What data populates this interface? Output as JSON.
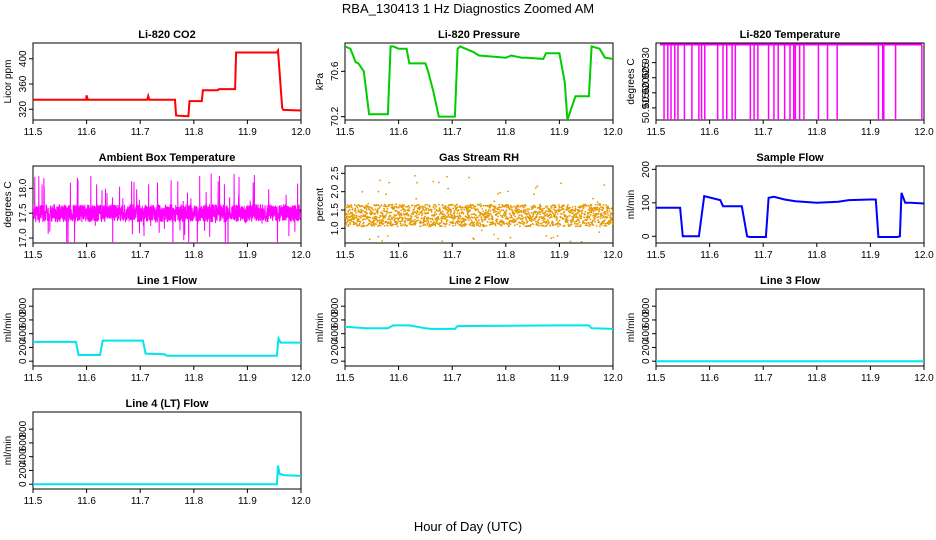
{
  "title": "RBA_130413  1 Hz Diagnostics Zoomed AM",
  "xlabel": "Hour of Day (UTC)",
  "chart_data": [
    {
      "type": "line",
      "title": "Li-820 CO2",
      "ylabel": "Licor ppm",
      "color": "#ff0000",
      "xlim": [
        11.5,
        12.0
      ],
      "ylim": [
        303,
        425
      ],
      "xticks": [
        "11.5",
        "11.6",
        "11.7",
        "11.8",
        "11.9",
        "12.0"
      ],
      "yticks": [
        320,
        360,
        400
      ],
      "series": [
        {
          "x": [
            11.5,
            11.599,
            11.6,
            11.602,
            11.713,
            11.715,
            11.717,
            11.765,
            11.767,
            11.79,
            11.792,
            11.815,
            11.817,
            11.845,
            11.847,
            11.877,
            11.879,
            11.955,
            11.957,
            11.965,
            11.967,
            12.0
          ],
          "y": [
            335,
            335,
            342,
            335,
            335,
            341,
            335,
            335,
            310,
            309,
            333,
            333,
            350,
            350,
            352,
            352,
            410,
            410,
            413,
            322,
            319,
            318
          ]
        }
      ]
    },
    {
      "type": "line",
      "title": "Li-820 Pressure",
      "ylabel": "kPa",
      "color": "#00cc00",
      "xlim": [
        11.5,
        12.0
      ],
      "ylim": [
        70.17,
        70.85
      ],
      "xticks": [
        "11.5",
        "11.6",
        "11.7",
        "11.8",
        "11.9",
        "12.0"
      ],
      "yticks": [
        "70.2",
        "70.6"
      ],
      "series": [
        {
          "x": [
            11.5,
            11.51,
            11.52,
            11.525,
            11.535,
            11.545,
            11.58,
            11.585,
            11.59,
            11.6,
            11.615,
            11.62,
            11.65,
            11.655,
            11.665,
            11.675,
            11.705,
            11.71,
            11.715,
            11.74,
            11.75,
            11.8,
            11.81,
            11.83,
            11.84,
            11.87,
            11.875,
            11.9,
            11.91,
            11.915,
            11.93,
            11.955,
            11.96,
            11.975,
            11.985,
            12.0
          ],
          "y": [
            70.82,
            70.8,
            70.68,
            70.67,
            70.6,
            70.22,
            70.22,
            70.82,
            70.82,
            70.8,
            70.8,
            70.67,
            70.67,
            70.6,
            70.42,
            70.2,
            70.2,
            70.8,
            70.82,
            70.77,
            70.74,
            70.72,
            70.74,
            70.72,
            70.72,
            70.71,
            70.76,
            70.76,
            70.5,
            70.17,
            70.38,
            70.38,
            70.82,
            70.8,
            70.72,
            70.71
          ]
        }
      ]
    },
    {
      "type": "line",
      "title": "Li-820 Temperature",
      "ylabel": "degrees C",
      "color": "#ff00ff",
      "xlim": [
        11.5,
        12.0
      ],
      "ylim": [
        50.911,
        50.9365
      ],
      "xticks": [
        "11.5",
        "11.6",
        "11.7",
        "11.8",
        "11.9",
        "12.0"
      ],
      "yticks": [
        "50.915",
        "50.920",
        "50.925",
        "50.930"
      ],
      "baseline": 50.936,
      "dip_to": 50.911,
      "dips_x": [
        11.515,
        11.522,
        11.528,
        11.535,
        11.541,
        11.553,
        11.567,
        11.58,
        11.585,
        11.591,
        11.615,
        11.625,
        11.632,
        11.642,
        11.648,
        11.676,
        11.683,
        11.69,
        11.71,
        11.72,
        11.728,
        11.74,
        11.75,
        11.757,
        11.76,
        11.768,
        11.776,
        11.803,
        11.82,
        11.838,
        11.915,
        11.923,
        11.925,
        11.947,
        11.996
      ]
    },
    {
      "type": "line",
      "title": "Ambient Box Temperature",
      "ylabel": "degrees C",
      "color": "#ff00ff",
      "xlim": [
        11.5,
        12.0
      ],
      "ylim": [
        16.9,
        18.45
      ],
      "xticks": [
        "11.5",
        "11.6",
        "11.7",
        "11.8",
        "11.9",
        "12.0"
      ],
      "yticks": [
        "17.0",
        "17.5",
        "18.0"
      ],
      "noise": {
        "center": 17.5,
        "core": 0.18,
        "spike": 0.8,
        "samples": 1800
      }
    },
    {
      "type": "scatter",
      "title": "Gas Stream RH",
      "ylabel": "percent",
      "color": "#e69900",
      "xlim": [
        11.5,
        12.0
      ],
      "ylim": [
        0.6,
        2.7
      ],
      "xticks": [
        "11.5",
        "11.6",
        "11.7",
        "11.8",
        "11.9",
        "12.0"
      ],
      "yticks": [
        "1.0",
        "1.5",
        "2.0",
        "2.5"
      ],
      "noise": {
        "center": 1.35,
        "core": 0.3,
        "spike": 1.1,
        "samples": 1800
      }
    },
    {
      "type": "line",
      "title": "Sample Flow",
      "ylabel": "ml/min",
      "color": "#0000ff",
      "xlim": [
        11.5,
        12.0
      ],
      "ylim": [
        -20,
        210
      ],
      "xticks": [
        "11.5",
        "11.6",
        "11.7",
        "11.8",
        "11.9",
        "12.0"
      ],
      "yticks": [
        0,
        100,
        200
      ],
      "series": [
        {
          "x": [
            11.5,
            11.545,
            11.55,
            11.575,
            11.58,
            11.59,
            11.62,
            11.625,
            11.66,
            11.67,
            11.675,
            11.705,
            11.71,
            11.72,
            11.74,
            11.76,
            11.8,
            11.84,
            11.86,
            11.9,
            11.91,
            11.915,
            11.95,
            11.955,
            11.958,
            11.965,
            11.975,
            12.0
          ],
          "y": [
            85,
            85,
            0,
            0,
            0,
            120,
            108,
            90,
            90,
            0,
            -2,
            -2,
            115,
            118,
            110,
            105,
            100,
            103,
            108,
            110,
            110,
            -2,
            -2,
            0,
            130,
            100,
            100,
            98
          ]
        }
      ]
    },
    {
      "type": "line",
      "title": "Line 1 Flow",
      "ylabel": "ml/min",
      "color": "#00e5ee",
      "xlim": [
        11.5,
        12.0
      ],
      "ylim": [
        -70,
        1050
      ],
      "xticks": [
        "11.5",
        "11.6",
        "11.7",
        "11.8",
        "11.9",
        "12.0"
      ],
      "yticks": [
        0,
        200,
        400,
        600,
        800
      ],
      "series": [
        {
          "x": [
            11.5,
            11.58,
            11.585,
            11.625,
            11.63,
            11.705,
            11.71,
            11.745,
            11.75,
            11.955,
            11.958,
            11.962,
            12.0
          ],
          "y": [
            280,
            280,
            90,
            90,
            300,
            300,
            110,
            100,
            80,
            80,
            330,
            270,
            270
          ]
        }
      ]
    },
    {
      "type": "line",
      "title": "Line 2 Flow",
      "ylabel": "ml/min",
      "color": "#00e5ee",
      "xlim": [
        11.5,
        12.0
      ],
      "ylim": [
        -70,
        1050
      ],
      "xticks": [
        "11.5",
        "11.6",
        "11.7",
        "11.8",
        "11.9",
        "12.0"
      ],
      "yticks": [
        0,
        200,
        400,
        600,
        800
      ],
      "series": [
        {
          "x": [
            11.5,
            11.54,
            11.58,
            11.59,
            11.62,
            11.65,
            11.66,
            11.705,
            11.71,
            11.8,
            11.9,
            11.955,
            11.96,
            12.0
          ],
          "y": [
            500,
            480,
            480,
            520,
            520,
            480,
            470,
            470,
            510,
            515,
            520,
            520,
            480,
            470
          ]
        }
      ]
    },
    {
      "type": "line",
      "title": "Line 3 Flow",
      "ylabel": "ml/min",
      "color": "#00e5ee",
      "xlim": [
        11.5,
        12.0
      ],
      "ylim": [
        -70,
        1050
      ],
      "xticks": [
        "11.5",
        "11.6",
        "11.7",
        "11.8",
        "11.9",
        "12.0"
      ],
      "yticks": [
        0,
        200,
        400,
        600,
        800
      ],
      "series": [
        {
          "x": [
            11.5,
            12.0
          ],
          "y": [
            0,
            0
          ]
        }
      ]
    },
    {
      "type": "line",
      "title": "Line 4 (LT) Flow",
      "ylabel": "ml/min",
      "color": "#00e5ee",
      "xlim": [
        11.5,
        12.0
      ],
      "ylim": [
        -70,
        1050
      ],
      "xticks": [
        "11.5",
        "11.6",
        "11.7",
        "11.8",
        "11.9",
        "12.0"
      ],
      "yticks": [
        0,
        200,
        400,
        600,
        800
      ],
      "series": [
        {
          "x": [
            11.5,
            11.955,
            11.957,
            11.96,
            11.97,
            12.0
          ],
          "y": [
            0,
            0,
            270,
            150,
            130,
            120
          ]
        }
      ]
    }
  ]
}
